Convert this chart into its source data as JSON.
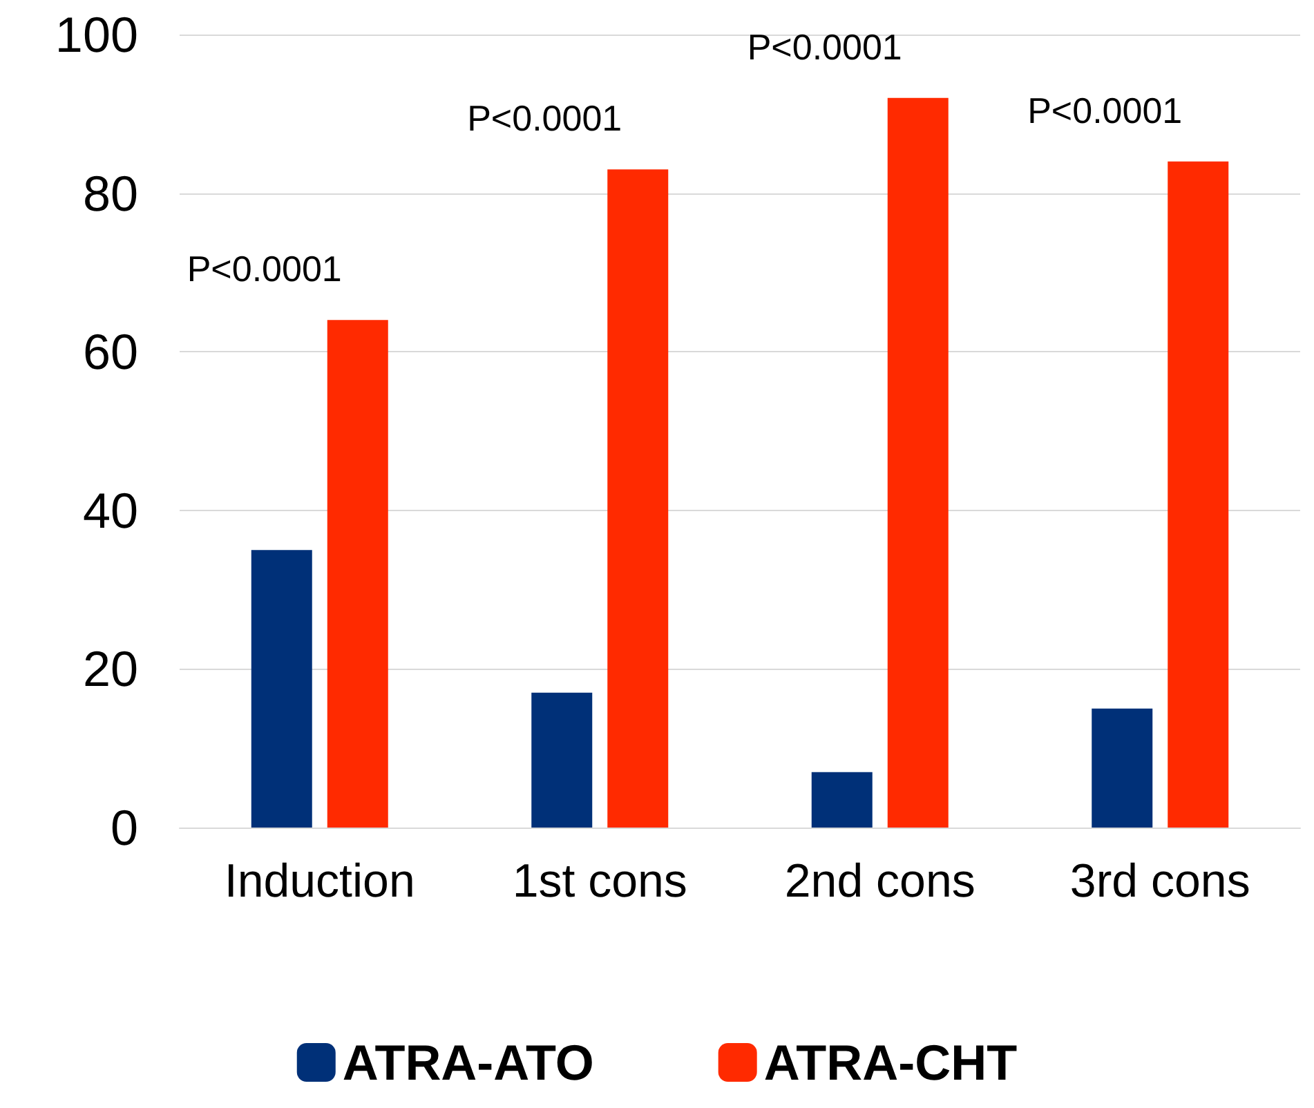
{
  "chart_data": {
    "type": "bar",
    "categories": [
      "Induction",
      "1st cons",
      "2nd cons",
      "3rd cons"
    ],
    "series": [
      {
        "name": "ATRA-ATO",
        "color": "#003078",
        "values": [
          35,
          17,
          7,
          15
        ]
      },
      {
        "name": "ATRA-CHT",
        "color": "#ff2a00",
        "values": [
          64,
          83,
          92,
          84
        ]
      }
    ],
    "ylim": [
      0,
      100
    ],
    "yticks": [
      0,
      20,
      40,
      60,
      80,
      100
    ],
    "grid": "y",
    "legend": "bottom",
    "annotations": [
      "P<0.0001",
      "P<0.0001",
      "P<0.0001",
      "P<0.0001"
    ]
  }
}
